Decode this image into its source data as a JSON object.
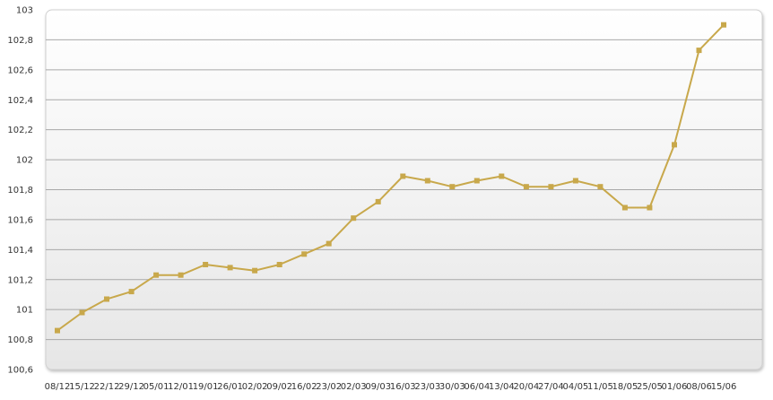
{
  "chart_data": {
    "type": "line",
    "title": "",
    "xlabel": "",
    "ylabel": "",
    "ylim": [
      100.6,
      103
    ],
    "y_ticks": [
      "100,6",
      "100,8",
      "101",
      "101,2",
      "101,4",
      "101,6",
      "101,8",
      "102",
      "102,2",
      "102,4",
      "102,6",
      "102,8",
      "103"
    ],
    "grid": true,
    "categories": [
      "08/12",
      "15/12",
      "22/12",
      "29/12",
      "05/01",
      "12/01",
      "19/01",
      "26/01",
      "02/02",
      "09/02",
      "16/02",
      "23/02",
      "02/03",
      "09/03",
      "16/03",
      "23/03",
      "30/03",
      "06/04",
      "13/04",
      "20/04",
      "27/04",
      "04/05",
      "11/05",
      "18/05",
      "25/05",
      "01/06",
      "08/06",
      "15/06"
    ],
    "series": [
      {
        "name": "",
        "color": "#c8a84b",
        "values": [
          100.86,
          100.98,
          101.07,
          101.12,
          101.23,
          101.23,
          101.3,
          101.28,
          101.26,
          101.3,
          101.37,
          101.44,
          101.61,
          101.72,
          101.89,
          101.86,
          101.82,
          101.86,
          101.89,
          101.82,
          101.82,
          101.86,
          101.82,
          101.68,
          101.68,
          102.1,
          102.73,
          102.9
        ]
      }
    ]
  }
}
